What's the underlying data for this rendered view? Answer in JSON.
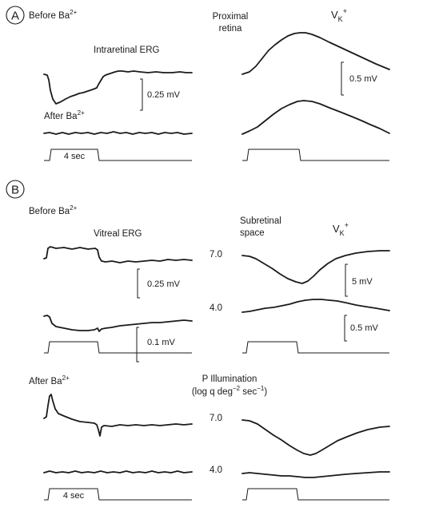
{
  "panel_a": {
    "letter": "A",
    "before_ba_main": "Before Ba",
    "before_ba_sup": "2+",
    "intraretinal_erg": "Intraretinal ERG",
    "after_ba_main": "After Ba",
    "after_ba_sup": "2+",
    "proximal": "Proximal",
    "retina": "retina",
    "vk_main": "V",
    "vk_sub": "K",
    "vk_sup": "+",
    "scale_left": "0.25 mV",
    "scale_right": "0.5 mV",
    "time_label": "4 sec"
  },
  "panel_b": {
    "letter": "B",
    "before_ba_main": "Before Ba",
    "before_ba_sup": "2+",
    "vitreal_erg": "Vitreal  ERG",
    "subretinal": "Subretinal",
    "space": "space",
    "vk_main": "V",
    "vk_sub": "K",
    "vk_sup": "+",
    "int_high_1": "7.0",
    "int_low_1": "4.0",
    "scale_025": "0.25 mV",
    "scale_5": "5 mV",
    "scale_01": "0.1 mV",
    "scale_05": "0.5 mV",
    "after_ba_main": "After Ba",
    "after_ba_sup": "2+",
    "illum_title": "P Illumination",
    "illum_units_1": "(log q deg",
    "illum_units_exp1": "−2",
    "illum_units_2": " sec",
    "illum_units_exp2": "−1",
    "illum_units_3": ")",
    "int_high_2": "7.0",
    "int_low_2": "4.0",
    "time_label": "4 sec"
  }
}
